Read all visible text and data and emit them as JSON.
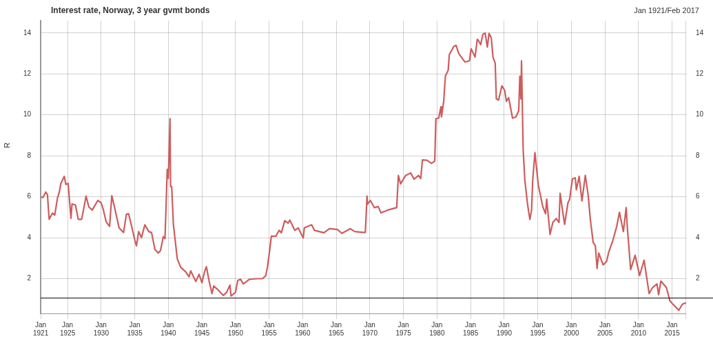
{
  "chart_data": {
    "type": "line",
    "title": "Interest rate, Norway, 3 year gvmt bonds",
    "subtitle": "Jan 1921/Feb 2017",
    "ylabel": "R",
    "x": [
      "1921-01",
      "1921-05",
      "1921-10",
      "1922-01",
      "1922-04",
      "1922-10",
      "1923-02",
      "1923-07",
      "1923-10",
      "1924-01",
      "1924-07",
      "1924-10",
      "1925-02",
      "1925-07",
      "1925-09",
      "1926-03",
      "1926-08",
      "1927-02",
      "1927-05",
      "1927-10",
      "1928-03",
      "1928-09",
      "1929-07",
      "1930-01",
      "1930-05",
      "1930-10",
      "1931-04",
      "1931-08",
      "1932-01",
      "1932-09",
      "1933-05",
      "1933-10",
      "1934-02",
      "1934-07",
      "1935-02",
      "1935-04",
      "1935-08",
      "1936-01",
      "1936-07",
      "1937-02",
      "1937-07",
      "1938-01",
      "1938-07",
      "1938-11",
      "1939-04",
      "1939-07",
      "1939-09",
      "1939-11",
      "1940-01",
      "1940-04",
      "1940-05",
      "1940-07",
      "1940-10",
      "1941-05",
      "1941-11",
      "1942-08",
      "1943-02",
      "1943-05",
      "1944-02",
      "1944-08",
      "1945-01",
      "1945-05",
      "1945-09",
      "1946-02",
      "1946-07",
      "1946-10",
      "1947-04",
      "1948-03",
      "1948-09",
      "1949-03",
      "1949-05",
      "1950-01",
      "1950-05",
      "1950-10",
      "1951-03",
      "1952-02",
      "1953-04",
      "1954-01",
      "1954-07",
      "1954-10",
      "1955-02",
      "1955-05",
      "1956-01",
      "1956-07",
      "1956-11",
      "1957-05",
      "1957-11",
      "1958-02",
      "1958-11",
      "1959-05",
      "1960-02",
      "1960-04",
      "1961-05",
      "1961-10",
      "1963-03",
      "1964-01",
      "1965-03",
      "1965-11",
      "1967-02",
      "1967-10",
      "1969-01",
      "1969-05",
      "1969-08",
      "1969-09",
      "1970-02",
      "1970-09",
      "1971-04",
      "1971-09",
      "1972-09",
      "1974-01",
      "1974-04",
      "1974-08",
      "1975-05",
      "1976-02",
      "1976-08",
      "1977-04",
      "1977-08",
      "1977-11",
      "1978-07",
      "1979-03",
      "1979-09",
      "1979-11",
      "1980-04",
      "1980-08",
      "1980-09",
      "1981-01",
      "1981-04",
      "1981-09",
      "1981-11",
      "1982-07",
      "1982-11",
      "1983-04",
      "1984-03",
      "1984-11",
      "1985-02",
      "1985-09",
      "1986-01",
      "1986-03",
      "1986-07",
      "1986-11",
      "1987-03",
      "1987-07",
      "1987-10",
      "1988-02",
      "1988-05",
      "1988-09",
      "1988-11",
      "1989-03",
      "1989-09",
      "1990-02",
      "1990-05",
      "1990-09",
      "1991-04",
      "1991-10",
      "1992-03",
      "1992-05",
      "1992-07",
      "1992-08",
      "1992-11",
      "1993-02",
      "1993-07",
      "1993-11",
      "1994-02",
      "1994-04",
      "1994-08",
      "1995-02",
      "1995-10",
      "1996-03",
      "1996-05",
      "1996-11",
      "1997-04",
      "1997-10",
      "1998-03",
      "1998-05",
      "1998-08",
      "1999-01",
      "1999-07",
      "1999-10",
      "2000-03",
      "2000-08",
      "2000-10",
      "2001-03",
      "2001-08",
      "2002-02",
      "2002-07",
      "2002-11",
      "2003-04",
      "2003-08",
      "2003-11",
      "2004-02",
      "2004-10",
      "2005-04",
      "2005-08",
      "2006-03",
      "2006-10",
      "2007-03",
      "2007-10",
      "2008-03",
      "2008-05",
      "2008-11",
      "2009-07",
      "2010-03",
      "2010-11",
      "2011-08",
      "2012-02",
      "2012-10",
      "2013-01",
      "2013-05",
      "2014-03",
      "2014-09",
      "2015-01",
      "2015-07",
      "2016-01",
      "2016-07",
      "2016-11",
      "2017-02"
    ],
    "series": [
      {
        "color": "#cd5c5c",
        "values": [
          6.0,
          5.96,
          6.23,
          6.1,
          4.9,
          5.2,
          5.1,
          5.95,
          6.2,
          6.65,
          7.0,
          6.6,
          6.65,
          4.95,
          5.65,
          5.6,
          4.9,
          4.9,
          5.3,
          6.03,
          5.5,
          5.35,
          5.82,
          5.7,
          5.35,
          4.77,
          4.55,
          6.05,
          5.47,
          4.48,
          4.25,
          5.14,
          5.17,
          4.6,
          3.78,
          3.6,
          4.3,
          4.0,
          4.63,
          4.3,
          4.25,
          3.43,
          3.25,
          3.37,
          4.05,
          3.95,
          5.59,
          7.34,
          6.9,
          9.81,
          6.5,
          6.5,
          4.65,
          2.96,
          2.56,
          2.33,
          2.09,
          2.38,
          1.86,
          2.21,
          1.8,
          2.27,
          2.58,
          1.86,
          1.27,
          1.64,
          1.5,
          1.18,
          1.33,
          1.68,
          1.15,
          1.33,
          1.91,
          1.97,
          1.74,
          1.97,
          2.0,
          2.0,
          2.14,
          2.55,
          3.37,
          4.07,
          4.07,
          4.36,
          4.24,
          4.83,
          4.71,
          4.86,
          4.36,
          4.48,
          3.98,
          4.48,
          4.63,
          4.36,
          4.24,
          4.44,
          4.4,
          4.21,
          4.44,
          4.3,
          4.26,
          4.26,
          6.03,
          5.64,
          5.82,
          5.47,
          5.52,
          5.21,
          5.35,
          5.47,
          7.04,
          6.63,
          7.04,
          7.16,
          6.86,
          7.04,
          6.89,
          7.8,
          7.78,
          7.63,
          7.74,
          9.81,
          9.84,
          10.39,
          9.9,
          10.66,
          11.89,
          12.18,
          12.94,
          13.34,
          13.4,
          12.99,
          12.58,
          12.64,
          13.23,
          12.82,
          13.69,
          13.63,
          13.43,
          13.93,
          14.0,
          13.31,
          13.98,
          13.77,
          12.82,
          12.53,
          10.78,
          10.72,
          11.42,
          11.19,
          10.66,
          10.84,
          9.84,
          9.9,
          10.2,
          11.89,
          10.78,
          12.64,
          8.27,
          6.8,
          5.59,
          4.89,
          5.35,
          6.8,
          8.15,
          6.57,
          5.52,
          5.17,
          5.88,
          4.16,
          4.75,
          4.94,
          4.75,
          6.17,
          5.59,
          4.65,
          5.7,
          5.88,
          6.87,
          6.92,
          6.34,
          7.0,
          5.8,
          7.04,
          6.1,
          4.89,
          3.78,
          3.6,
          2.5,
          3.25,
          2.67,
          2.84,
          3.31,
          3.84,
          4.54,
          5.24,
          4.3,
          5.47,
          4.54,
          2.44,
          3.14,
          2.15,
          2.9,
          1.27,
          1.56,
          1.74,
          1.21,
          1.88,
          1.56,
          0.92,
          0.8,
          0.63,
          0.45,
          0.74,
          0.8,
          0.8
        ]
      }
    ],
    "xlim": [
      "1921-01",
      "2017-02"
    ],
    "xticks": [
      {
        "value": "1921-01",
        "label": "Jan 1921"
      },
      {
        "value": "1925-01",
        "label": "Jan 1925"
      },
      {
        "value": "1930-01",
        "label": "Jan 1930"
      },
      {
        "value": "1935-01",
        "label": "Jan 1935"
      },
      {
        "value": "1940-01",
        "label": "Jan 1940"
      },
      {
        "value": "1945-01",
        "label": "Jan 1945"
      },
      {
        "value": "1950-01",
        "label": "Jan 1950"
      },
      {
        "value": "1955-01",
        "label": "Jan 1955"
      },
      {
        "value": "1960-01",
        "label": "Jan 1960"
      },
      {
        "value": "1965-01",
        "label": "Jan 1965"
      },
      {
        "value": "1970-01",
        "label": "Jan 1970"
      },
      {
        "value": "1975-01",
        "label": "Jan 1975"
      },
      {
        "value": "1980-01",
        "label": "Jan 1980"
      },
      {
        "value": "1985-01",
        "label": "Jan 1985"
      },
      {
        "value": "1990-01",
        "label": "Jan 1990"
      },
      {
        "value": "1995-01",
        "label": "Jan 1995"
      },
      {
        "value": "2000-01",
        "label": "Jan 2000"
      },
      {
        "value": "2005-01",
        "label": "Jan 2005"
      },
      {
        "value": "2010-01",
        "label": "Jan 2010"
      },
      {
        "value": "2015-01",
        "label": "Jan 2015"
      },
      {
        "value": "2017-02",
        "label": null
      }
    ],
    "ylim": [
      0.3,
      14.6
    ],
    "yticks": [
      2,
      4,
      6,
      8,
      10,
      12,
      14
    ],
    "y2lim": [
      0.3,
      14.6
    ],
    "y2ticks": [
      2,
      4,
      6,
      8,
      10,
      12,
      14
    ],
    "ref_lines": [
      {
        "axis": "y",
        "value": 1.05,
        "color": "#000000"
      }
    ],
    "grid": true,
    "legend": false,
    "marker": "none",
    "line_style": "solid"
  }
}
